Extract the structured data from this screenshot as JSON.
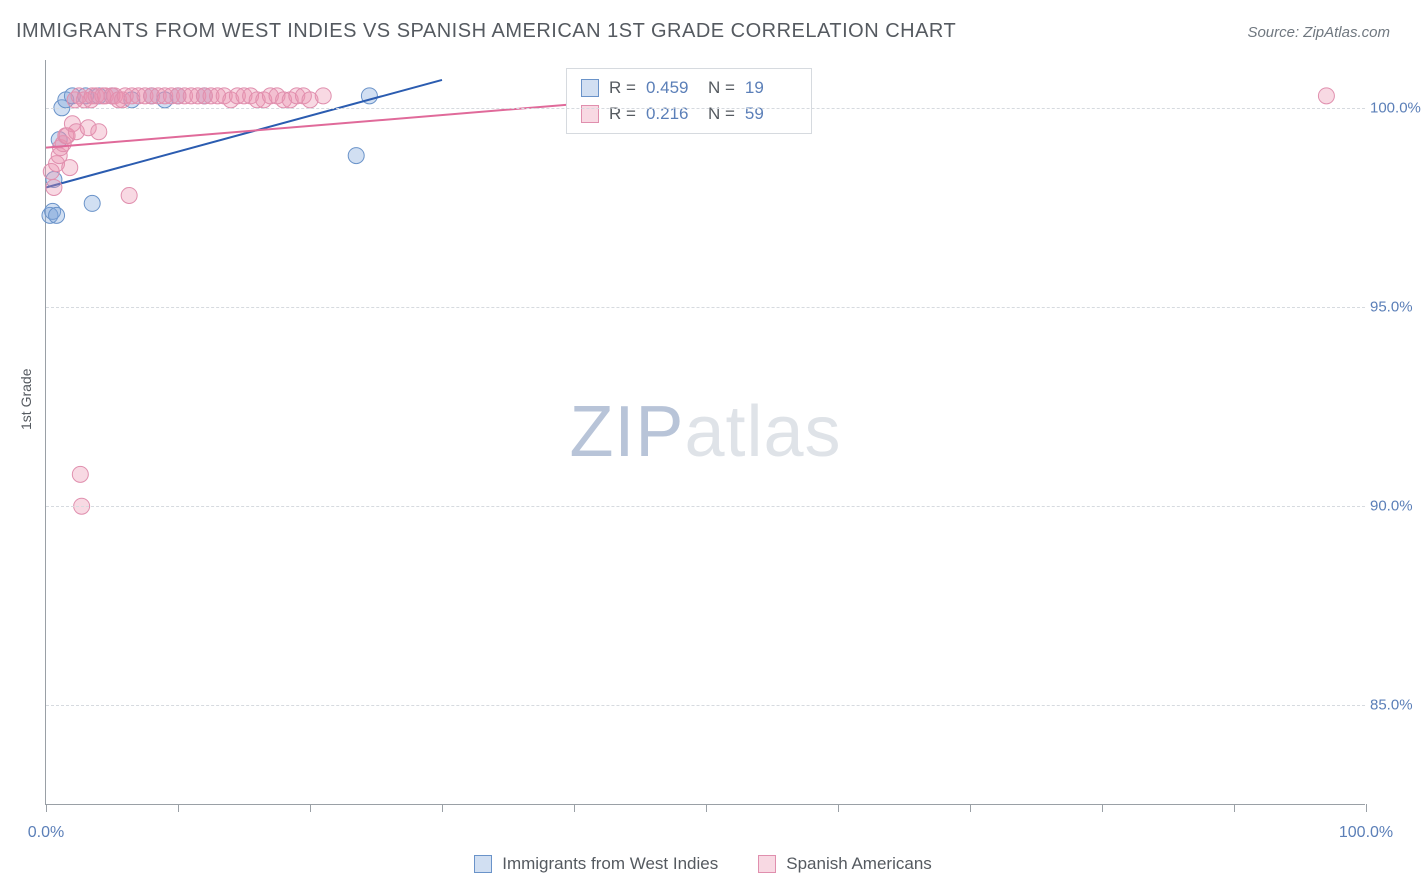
{
  "title": "IMMIGRANTS FROM WEST INDIES VS SPANISH AMERICAN 1ST GRADE CORRELATION CHART",
  "source": "Source: ZipAtlas.com",
  "y_axis_title": "1st Grade",
  "watermark": {
    "part1": "ZIP",
    "part2": "atlas"
  },
  "colors": {
    "series_a_fill": "rgba(123,163,217,0.35)",
    "series_a_stroke": "#6a93c9",
    "series_b_fill": "rgba(235,145,175,0.35)",
    "series_b_stroke": "#e08fae",
    "tick_text": "#5b7fb8",
    "axis": "#9aa0a6",
    "grid": "#d6dadf"
  },
  "chart": {
    "type": "scatter",
    "xlim": [
      0,
      100
    ],
    "ylim": [
      82.5,
      101.2
    ],
    "x_ticks": [
      0,
      10,
      20,
      30,
      40,
      50,
      60,
      70,
      80,
      90,
      100
    ],
    "x_tick_labels": {
      "0": "0.0%",
      "100": "100.0%"
    },
    "y_ticks": [
      85.0,
      90.0,
      95.0,
      100.0
    ],
    "y_tick_labels": [
      "85.0%",
      "90.0%",
      "95.0%",
      "100.0%"
    ],
    "marker_radius": 8,
    "line_width": 2,
    "series": [
      {
        "key": "a",
        "label": "Immigrants from West Indies",
        "R": "0.459",
        "N": "19",
        "trend": {
          "x1": 0,
          "y1": 98.0,
          "x2": 30,
          "y2": 100.7
        },
        "points": [
          [
            0.3,
            97.3
          ],
          [
            0.5,
            97.4
          ],
          [
            0.8,
            97.3
          ],
          [
            0.6,
            98.2
          ],
          [
            1.0,
            99.2
          ],
          [
            1.2,
            100.0
          ],
          [
            1.5,
            100.2
          ],
          [
            2.0,
            100.3
          ],
          [
            3.0,
            100.3
          ],
          [
            3.5,
            97.6
          ],
          [
            4.0,
            100.3
          ],
          [
            5.0,
            100.3
          ],
          [
            6.5,
            100.2
          ],
          [
            8.0,
            100.3
          ],
          [
            9.0,
            100.2
          ],
          [
            10.0,
            100.3
          ],
          [
            12.0,
            100.3
          ],
          [
            23.5,
            98.8
          ],
          [
            24.5,
            100.3
          ]
        ]
      },
      {
        "key": "b",
        "label": "Spanish Americans",
        "R": "0.216",
        "N": "59",
        "trend": {
          "x1": 0,
          "y1": 99.0,
          "x2": 55,
          "y2": 100.5
        },
        "points": [
          [
            0.4,
            98.4
          ],
          [
            0.6,
            98.0
          ],
          [
            0.8,
            98.6
          ],
          [
            1.0,
            98.8
          ],
          [
            1.1,
            99.0
          ],
          [
            1.3,
            99.1
          ],
          [
            1.5,
            99.3
          ],
          [
            1.6,
            99.3
          ],
          [
            1.8,
            98.5
          ],
          [
            2.0,
            99.6
          ],
          [
            2.2,
            100.2
          ],
          [
            2.3,
            99.4
          ],
          [
            2.5,
            100.3
          ],
          [
            2.6,
            90.8
          ],
          [
            2.7,
            90.0
          ],
          [
            2.9,
            100.2
          ],
          [
            3.2,
            99.5
          ],
          [
            3.4,
            100.2
          ],
          [
            3.5,
            100.3
          ],
          [
            3.8,
            100.3
          ],
          [
            4.0,
            99.4
          ],
          [
            4.3,
            100.3
          ],
          [
            4.5,
            100.3
          ],
          [
            5.0,
            100.3
          ],
          [
            5.2,
            100.3
          ],
          [
            5.5,
            100.2
          ],
          [
            5.8,
            100.2
          ],
          [
            6.0,
            100.3
          ],
          [
            6.3,
            97.8
          ],
          [
            6.5,
            100.3
          ],
          [
            7.0,
            100.3
          ],
          [
            7.5,
            100.3
          ],
          [
            8.0,
            100.3
          ],
          [
            8.5,
            100.3
          ],
          [
            9.0,
            100.3
          ],
          [
            9.5,
            100.3
          ],
          [
            10.0,
            100.3
          ],
          [
            10.5,
            100.3
          ],
          [
            11.0,
            100.3
          ],
          [
            11.5,
            100.3
          ],
          [
            12.0,
            100.3
          ],
          [
            12.5,
            100.3
          ],
          [
            13.0,
            100.3
          ],
          [
            13.5,
            100.3
          ],
          [
            14.0,
            100.2
          ],
          [
            14.5,
            100.3
          ],
          [
            15.0,
            100.3
          ],
          [
            15.5,
            100.3
          ],
          [
            16.0,
            100.2
          ],
          [
            16.5,
            100.2
          ],
          [
            17.0,
            100.3
          ],
          [
            17.5,
            100.3
          ],
          [
            18.0,
            100.2
          ],
          [
            18.5,
            100.2
          ],
          [
            19.0,
            100.3
          ],
          [
            19.5,
            100.3
          ],
          [
            20.0,
            100.2
          ],
          [
            21.0,
            100.3
          ],
          [
            97.0,
            100.3
          ]
        ]
      }
    ]
  },
  "legend_labels": {
    "R": "R =",
    "N": "N ="
  }
}
